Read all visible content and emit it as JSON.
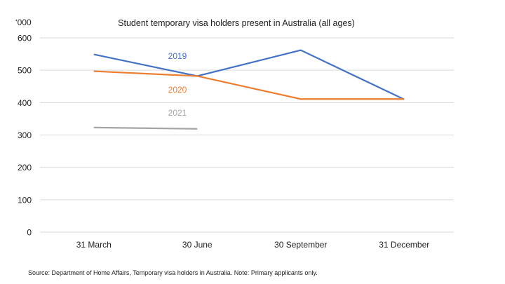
{
  "chart_data": {
    "type": "line",
    "title": "Student temporary visa holders present in Australia (all ages)",
    "ylabel": "‘000",
    "xlabel": "",
    "ylim": [
      0,
      600
    ],
    "yticks": [
      0,
      100,
      200,
      300,
      400,
      500,
      600
    ],
    "ytick_labels": [
      "0",
      "100",
      "200",
      "300",
      "400",
      "500",
      "600"
    ],
    "grid": true,
    "legend": "inline labels",
    "categories": [
      "31 March",
      "30 June",
      "30 September",
      "31 December"
    ],
    "series": [
      {
        "name": "2019",
        "color": "#4472C4",
        "values": [
          549,
          482,
          562,
          410
        ]
      },
      {
        "name": "2020",
        "color": "#ED7D31",
        "values": [
          497,
          482,
          411,
          411
        ]
      },
      {
        "name": "2021",
        "color": "#A5A5A5",
        "values": [
          323,
          319,
          null,
          null
        ]
      }
    ],
    "source_note": "Source: Department of Home Affairs, Temporary visa holders in Australia. Note: Primary applicants only."
  }
}
